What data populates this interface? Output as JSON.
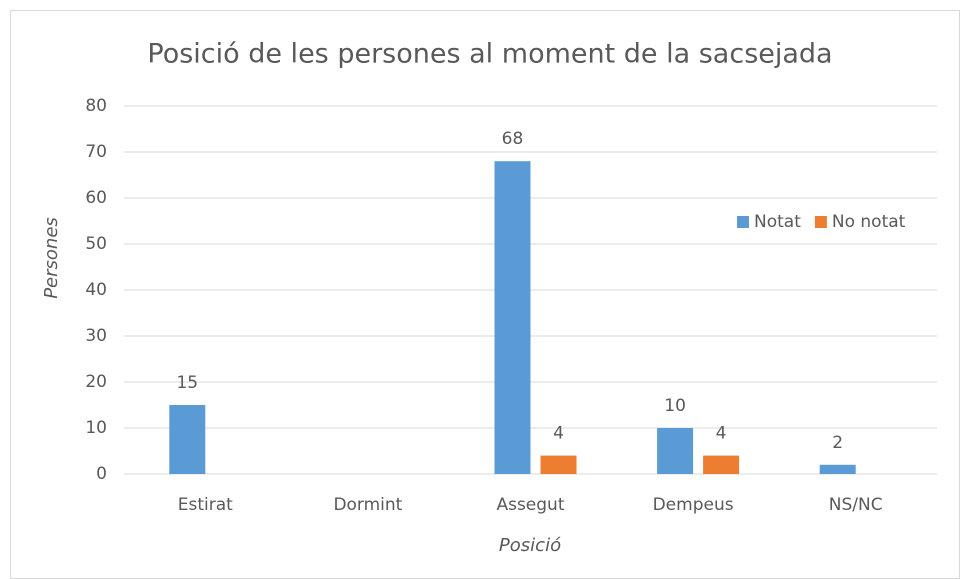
{
  "chart_data": {
    "type": "bar",
    "title": "Posició de les persones al moment de la sacsejada",
    "x_label": "Posició",
    "y_label": "Persones",
    "categories": [
      "Estirat",
      "Dormint",
      "Assegut",
      "Dempeus",
      "NS/NC"
    ],
    "series": [
      {
        "name": "Notat",
        "color": "#5b9bd5",
        "values": [
          15,
          null,
          68,
          10,
          2
        ]
      },
      {
        "name": "No notat",
        "color": "#ed7d31",
        "values": [
          null,
          null,
          4,
          4,
          null
        ]
      }
    ],
    "ylim": [
      0,
      80
    ],
    "yticks": [
      0,
      10,
      20,
      30,
      40,
      50,
      60,
      70,
      80
    ],
    "grid": true,
    "legend": "right",
    "data_labels": true
  }
}
